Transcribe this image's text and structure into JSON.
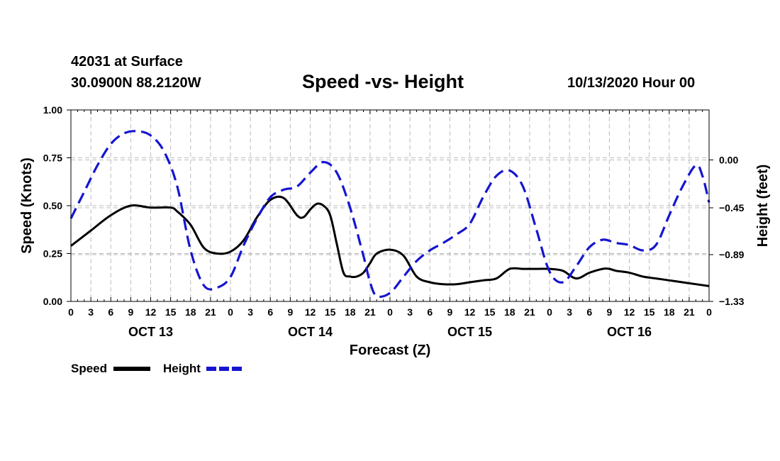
{
  "header": {
    "station": "42031 at Surface",
    "coords": "30.0900N 88.2120W",
    "title": "Speed -vs- Height",
    "datetime": "10/13/2020 Hour 00"
  },
  "colors": {
    "speed": "#000000",
    "height": "#1515d0",
    "grid": "#bbbbbb"
  },
  "chart_data": {
    "type": "line",
    "title": "Speed -vs- Height",
    "xlabel": "Forecast (Z)",
    "ylabel": "Speed (Knots)",
    "y2label": "Height (feet)",
    "xlim": [
      0,
      96
    ],
    "ylim": [
      0,
      1
    ],
    "y2lim": [
      -1.33,
      0.47
    ],
    "x_tick_step": 3,
    "x_tick_labels": [
      "0",
      "3",
      "6",
      "9",
      "12",
      "15",
      "18",
      "21",
      "0",
      "3",
      "6",
      "9",
      "12",
      "15",
      "18",
      "21",
      "0",
      "3",
      "6",
      "9",
      "12",
      "15",
      "18",
      "21",
      "0",
      "3",
      "6",
      "9",
      "12",
      "15",
      "18",
      "21",
      "0"
    ],
    "y_ticks": [
      0,
      0.25,
      0.5,
      0.75,
      1.0
    ],
    "y_tick_labels": [
      "0.00",
      "0.25",
      "0.50",
      "0.75",
      "1.00"
    ],
    "y2_ticks": [
      -1.33,
      -0.89,
      -0.45,
      0.0
    ],
    "y2_tick_labels": [
      "−1.33",
      "−0.89",
      "−0.45",
      "0.00"
    ],
    "day_labels": [
      {
        "x": 12,
        "label": "OCT 13"
      },
      {
        "x": 36,
        "label": "OCT 14"
      },
      {
        "x": 60,
        "label": "OCT 15"
      },
      {
        "x": 84,
        "label": "OCT 16"
      }
    ],
    "grid": true,
    "legend_position": "bottom-left",
    "series": [
      {
        "name": "Speed",
        "axis": "left",
        "style": "solid",
        "x": [
          0,
          3,
          6,
          9,
          12,
          15,
          16,
          18,
          20,
          22,
          24,
          26,
          28,
          30,
          32,
          34,
          35,
          36,
          37,
          38,
          39,
          40,
          41,
          42,
          43,
          44,
          45,
          46,
          48,
          50,
          52,
          54,
          56,
          58,
          60,
          62,
          64,
          66,
          68,
          70,
          72,
          74,
          76,
          78,
          80,
          81,
          82,
          84,
          86,
          88,
          90,
          92,
          94,
          96
        ],
        "values": [
          0.29,
          0.37,
          0.45,
          0.5,
          0.49,
          0.49,
          0.47,
          0.4,
          0.28,
          0.25,
          0.26,
          0.32,
          0.44,
          0.53,
          0.54,
          0.45,
          0.44,
          0.48,
          0.51,
          0.5,
          0.45,
          0.3,
          0.15,
          0.13,
          0.13,
          0.15,
          0.2,
          0.25,
          0.27,
          0.24,
          0.13,
          0.1,
          0.09,
          0.09,
          0.1,
          0.11,
          0.12,
          0.17,
          0.17,
          0.17,
          0.17,
          0.16,
          0.12,
          0.15,
          0.17,
          0.17,
          0.16,
          0.15,
          0.13,
          0.12,
          0.11,
          0.1,
          0.09,
          0.08
        ]
      },
      {
        "name": "Height",
        "axis": "right",
        "style": "dashed",
        "x": [
          0,
          2,
          4,
          6,
          8,
          10,
          12,
          14,
          16,
          18,
          20,
          22,
          24,
          26,
          28,
          30,
          32,
          34,
          36,
          38,
          40,
          42,
          44,
          45,
          46,
          48,
          50,
          52,
          54,
          56,
          58,
          60,
          62,
          64,
          66,
          68,
          70,
          72,
          74,
          76,
          78,
          80,
          82,
          84,
          86,
          88,
          90,
          92,
          94,
          95,
          96
        ],
        "values": [
          -0.55,
          -0.3,
          -0.05,
          0.15,
          0.25,
          0.27,
          0.23,
          0.08,
          -0.25,
          -0.85,
          -1.18,
          -1.2,
          -1.1,
          -0.8,
          -0.55,
          -0.35,
          -0.28,
          -0.25,
          -0.12,
          -0.02,
          -0.12,
          -0.45,
          -0.9,
          -1.15,
          -1.28,
          -1.25,
          -1.1,
          -0.95,
          -0.85,
          -0.78,
          -0.7,
          -0.6,
          -0.35,
          -0.15,
          -0.1,
          -0.25,
          -0.65,
          -1.05,
          -1.15,
          -1.0,
          -0.82,
          -0.75,
          -0.78,
          -0.8,
          -0.85,
          -0.8,
          -0.52,
          -0.25,
          -0.05,
          -0.15,
          -0.4
        ]
      }
    ]
  },
  "legend": [
    {
      "label": "Speed"
    },
    {
      "label": "Height"
    }
  ]
}
